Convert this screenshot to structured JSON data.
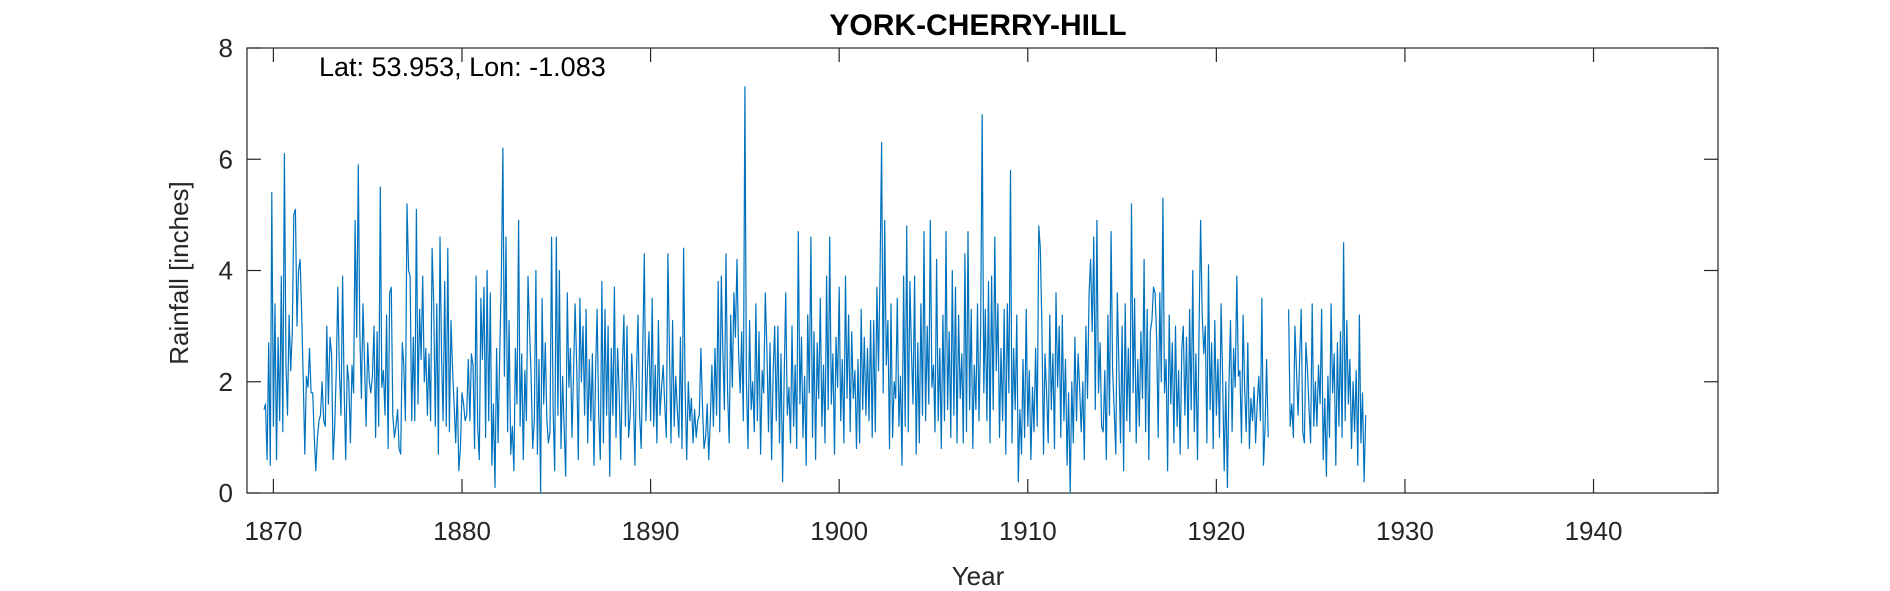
{
  "chart_data": {
    "type": "line",
    "title": "YORK-CHERRY-HILL",
    "annotation": "Lat: 53.953, Lon: -1.083",
    "xlabel": "Year",
    "ylabel": "Rainfall [inches]",
    "xlim": [
      1868.6,
      1946.6
    ],
    "ylim": [
      0,
      8
    ],
    "xticks": [
      1870,
      1880,
      1890,
      1900,
      1910,
      1920,
      1930,
      1940
    ],
    "yticks": [
      0,
      2,
      4,
      6,
      8
    ],
    "grid": false,
    "box": true,
    "line_color": "#0072bd",
    "series": [
      {
        "values_note_start_year": 1869.5,
        "x_start": 1869.5,
        "x_step": 0.0833333,
        "y": [
          1.5,
          1.6,
          0.6,
          2.7,
          0.5,
          5.4,
          1.2,
          3.4,
          0.6,
          2.8,
          1.3,
          3.9,
          1.1,
          6.1,
          2.3,
          1.4,
          3.2,
          2.2,
          2.9,
          5.0,
          5.1,
          3.0,
          4.0,
          4.2,
          3.2,
          2.0,
          0.7,
          2.1,
          1.9,
          2.6,
          1.8,
          1.8,
          1.0,
          0.4,
          1.0,
          1.3,
          1.4,
          2.0,
          1.3,
          1.2,
          3.0,
          1.6,
          2.8,
          2.5,
          0.6,
          1.2,
          2.2,
          3.7,
          2.2,
          1.4,
          3.9,
          1.9,
          0.6,
          2.3,
          2.0,
          0.9,
          2.3,
          1.8,
          4.9,
          2.8,
          5.9,
          2.9,
          1.7,
          3.4,
          2.3,
          1.2,
          2.7,
          2.0,
          1.8,
          2.1,
          3.0,
          1.0,
          2.9,
          1.2,
          5.5,
          1.9,
          2.2,
          1.4,
          3.2,
          0.8,
          3.6,
          3.7,
          1.4,
          1.0,
          1.2,
          1.5,
          0.8,
          0.7,
          2.7,
          2.3,
          1.3,
          5.2,
          4.0,
          3.9,
          1.3,
          2.8,
          1.3,
          5.1,
          1.6,
          3.3,
          2.4,
          3.9,
          2.0,
          2.6,
          1.4,
          2.5,
          1.3,
          4.4,
          3.4,
          1.2,
          3.4,
          0.7,
          4.6,
          2.4,
          1.3,
          3.8,
          1.2,
          4.4,
          1.1,
          3.1,
          2.2,
          1.6,
          0.9,
          1.9,
          0.4,
          0.8,
          1.8,
          1.6,
          1.3,
          1.4,
          2.4,
          1.3,
          2.5,
          2.3,
          0.8,
          3.9,
          1.2,
          0.6,
          3.5,
          2.4,
          3.7,
          1.0,
          4.0,
          1.3,
          3.6,
          0.5,
          1.6,
          0.1,
          2.6,
          0.9,
          2.5,
          3.8,
          6.2,
          2.1,
          4.6,
          1.1,
          3.1,
          0.7,
          1.2,
          0.4,
          2.6,
          1.6,
          4.9,
          1.2,
          2.5,
          0.6,
          2.2,
          1.3,
          3.9,
          2.9,
          2.1,
          0.8,
          1.3,
          4.0,
          0.7,
          2.4,
          0.0,
          3.5,
          1.6,
          2.7,
          1.3,
          0.9,
          1.1,
          4.6,
          1.5,
          0.4,
          4.6,
          1.4,
          4.0,
          0.8,
          2.1,
          1.2,
          0.3,
          3.6,
          1.9,
          2.6,
          1.0,
          2.2,
          3.4,
          2.3,
          0.6,
          3.5,
          2.0,
          3.0,
          1.4,
          3.3,
          0.9,
          2.4,
          1.3,
          2.5,
          0.5,
          2.2,
          3.3,
          1.4,
          0.6,
          3.8,
          0.9,
          3.3,
          1.4,
          3.0,
          0.3,
          2.6,
          1.4,
          3.7,
          1.0,
          2.6,
          1.8,
          0.6,
          2.2,
          3.2,
          1.2,
          3.0,
          1.0,
          1.4,
          2.5,
          1.8,
          0.5,
          2.1,
          3.2,
          1.4,
          0.8,
          2.5,
          4.3,
          1.3,
          2.2,
          2.9,
          1.3,
          3.5,
          1.2,
          2.3,
          0.9,
          3.1,
          1.4,
          1.9,
          2.3,
          1.6,
          1.0,
          4.3,
          2.6,
          0.9,
          3.1,
          1.2,
          2.1,
          1.5,
          1.0,
          2.8,
          0.8,
          4.4,
          1.8,
          0.6,
          2.0,
          1.3,
          1.7,
          0.9,
          1.5,
          1.0,
          1.3,
          1.4,
          2.6,
          1.6,
          0.8,
          1.0,
          1.6,
          0.6,
          1.3,
          2.3,
          1.2,
          2.6,
          1.4,
          3.8,
          1.1,
          3.9,
          2.5,
          1.5,
          4.3,
          1.8,
          0.9,
          3.2,
          1.9,
          3.6,
          2.8,
          4.2,
          2.5,
          1.8,
          2.9,
          1.3,
          7.3,
          2.0,
          0.8,
          3.1,
          1.5,
          2.0,
          1.1,
          3.4,
          1.3,
          2.9,
          0.7,
          2.2,
          1.8,
          3.6,
          2.6,
          1.1,
          2.7,
          0.6,
          2.2,
          3.0,
          1.3,
          3.0,
          0.9,
          2.5,
          0.2,
          2.1,
          3.6,
          1.4,
          1.9,
          0.9,
          3.0,
          1.2,
          2.3,
          0.8,
          4.7,
          1.6,
          2.8,
          1.0,
          2.1,
          0.5,
          3.2,
          1.8,
          4.6,
          1.0,
          2.9,
          0.6,
          2.7,
          1.7,
          3.5,
          1.2,
          2.3,
          0.9,
          3.9,
          1.5,
          4.6,
          1.6,
          2.5,
          0.7,
          2.8,
          1.9,
          3.7,
          1.3,
          2.4,
          0.9,
          3.9,
          1.7,
          3.2,
          1.1,
          2.9,
          1.7,
          2.2,
          0.8,
          2.4,
          0.9,
          3.3,
          1.5,
          2.8,
          1.4,
          2.6,
          1.3,
          3.1,
          1.0,
          3.1,
          1.1,
          3.7,
          2.2,
          3.9,
          6.3,
          1.8,
          4.9,
          2.3,
          3.1,
          0.8,
          3.4,
          1.0,
          2.0,
          1.7,
          3.5,
          1.2,
          2.1,
          0.5,
          3.9,
          1.2,
          4.8,
          1.1,
          3.8,
          2.5,
          1.6,
          3.9,
          0.7,
          2.7,
          0.9,
          3.4,
          1.4,
          4.7,
          1.3,
          3.0,
          1.6,
          4.9,
          1.9,
          2.3,
          1.1,
          4.2,
          1.3,
          2.6,
          0.8,
          3.2,
          1.3,
          4.7,
          1.5,
          2.9,
          1.0,
          4.0,
          1.4,
          3.7,
          0.9,
          3.2,
          1.7,
          2.5,
          0.9,
          4.3,
          1.1,
          4.7,
          1.5,
          3.3,
          0.8,
          2.3,
          1.5,
          3.4,
          1.3,
          2.9,
          6.8,
          1.8,
          3.3,
          1.3,
          3.8,
          0.9,
          3.9,
          1.5,
          4.6,
          2.2,
          3.4,
          1.0,
          2.6,
          1.3,
          3.3,
          0.7,
          3.4,
          1.8,
          5.8,
          0.9,
          2.6,
          1.5,
          3.2,
          0.2,
          1.5,
          0.7,
          2.4,
          1.0,
          3.3,
          1.2,
          2.2,
          0.6,
          1.9,
          1.1,
          2.6,
          1.2,
          4.8,
          4.4,
          3.0,
          0.7,
          2.5,
          1.8,
          0.9,
          3.2,
          1.5,
          2.5,
          0.8,
          3.6,
          1.9,
          3.0,
          1.0,
          3.2,
          1.3,
          2.4,
          0.5,
          1.8,
          0.0,
          2.0,
          0.9,
          2.8,
          1.3,
          2.5,
          1.9,
          1.1,
          2.0,
          0.6,
          3.0,
          1.7,
          3.6,
          4.2,
          2.9,
          4.6,
          1.5,
          4.9,
          1.8,
          2.7,
          1.2,
          1.1,
          2.2,
          0.6,
          3.2,
          1.4,
          4.7,
          2.2,
          1.5,
          0.7,
          3.6,
          2.3,
          0.9,
          3.0,
          0.4,
          3.4,
          1.3,
          2.6,
          1.1,
          5.2,
          1.8,
          3.5,
          0.9,
          2.4,
          1.2,
          2.9,
          1.7,
          4.2,
          1.1,
          3.3,
          0.6,
          2.9,
          3.1,
          3.7,
          3.6,
          2.8,
          1.0,
          3.6,
          2.0,
          5.3,
          1.8,
          2.4,
          0.4,
          3.2,
          1.6,
          2.7,
          0.9,
          3.0,
          1.2,
          2.2,
          0.7,
          2.6,
          3.0,
          1.4,
          2.8,
          0.8,
          3.3,
          1.5,
          4.0,
          1.1,
          2.5,
          0.6,
          3.0,
          4.9,
          3.2,
          2.5,
          3.0,
          0.9,
          4.1,
          1.5,
          2.7,
          0.8,
          3.1,
          1.4,
          2.4,
          1.0,
          3.4,
          2.1,
          0.4,
          2.0,
          0.1,
          1.9,
          3.1,
          1.1,
          2.6,
          1.9,
          3.9,
          2.1,
          2.2,
          0.9,
          3.2,
          1.9,
          1.1,
          2.7,
          0.8,
          1.7,
          1.3,
          1.9,
          0.9,
          1.6,
          2.1,
          1.3,
          3.5,
          0.5,
          1.2,
          2.4,
          1.0,
          null,
          null,
          null,
          null,
          null,
          null,
          null,
          null,
          null,
          null,
          null,
          null,
          3.3,
          1.2,
          1.6,
          1.0,
          3.0,
          2.2,
          1.4,
          2.4,
          3.3,
          1.1,
          0.9,
          2.7,
          2.2,
          1.5,
          0.9,
          3.4,
          1.2,
          2.0,
          1.2,
          2.3,
          1.6,
          3.3,
          0.6,
          1.7,
          0.3,
          2.1,
          1.0,
          3.4,
          1.8,
          2.5,
          0.5,
          2.7,
          1.2,
          2.9,
          1.0,
          4.5,
          1.3,
          3.1,
          1.6,
          2.4,
          0.8,
          2.0,
          1.1,
          2.2,
          0.5,
          3.2,
          0.9,
          1.8,
          0.2,
          1.4
        ]
      }
    ]
  }
}
